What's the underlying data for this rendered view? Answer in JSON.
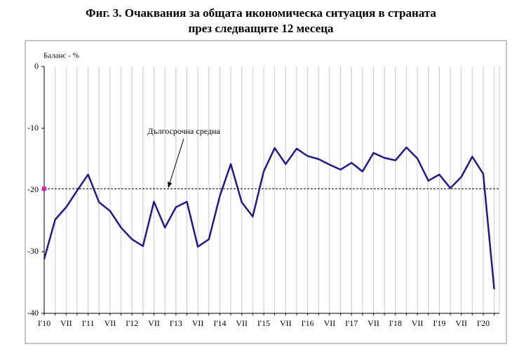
{
  "chart_data": {
    "type": "line",
    "title": "Фиг. 3. Очаквания за общата икономическа ситуация в страната",
    "subtitle": "през следващите 12 месеца",
    "y_label": "Баланс - %",
    "categories": [
      "I'10",
      null,
      "VII",
      null,
      "I'11",
      null,
      "VII",
      null,
      "I'12",
      null,
      "VII",
      null,
      "I'13",
      null,
      "VII",
      null,
      "I'14",
      null,
      "VII",
      null,
      "I'15",
      null,
      "VII",
      null,
      "I'16",
      null,
      "VII",
      null,
      "I'17",
      null,
      "VII",
      null,
      "I'18",
      null,
      "VII",
      null,
      "I'19",
      null,
      "VII",
      null,
      "I'20",
      null
    ],
    "values": [
      -31.2,
      -24.8,
      -22.8,
      -20.1,
      -17.5,
      -22,
      -23.4,
      -26.1,
      -28,
      -29.1,
      -21.9,
      -26.1,
      -22.8,
      -21.9,
      -29.2,
      -28,
      -21,
      -15.8,
      -22,
      -24.3,
      -17,
      -13.2,
      -15.8,
      -13.3,
      -14.5,
      -15,
      -15.9,
      -16.7,
      -15.6,
      -17,
      -14,
      -14.8,
      -15.2,
      -13.1,
      -14.9,
      -18.5,
      -17.5,
      -19.7,
      -17.9,
      -14.6,
      -17.4,
      -36.1
    ],
    "color": "#1f1a8c",
    "ylim": [
      -40,
      0
    ],
    "yticks": [
      0,
      -10,
      -20,
      -30,
      -40
    ],
    "reference_line": {
      "value": -19.8,
      "label": "Дългосрочна средна",
      "color": "#000000",
      "marker_color": "#e020c0"
    }
  }
}
